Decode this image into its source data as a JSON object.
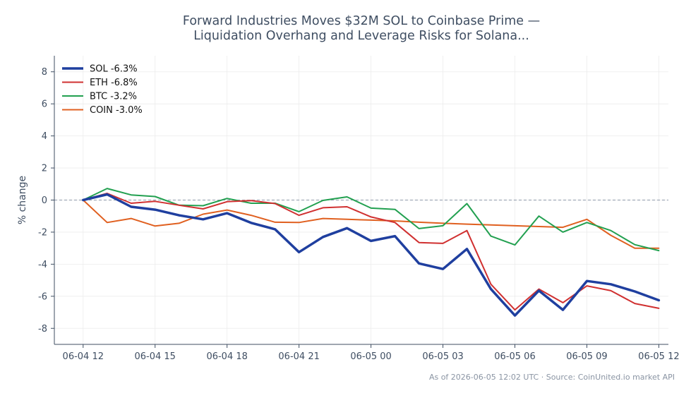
{
  "chart_data": {
    "type": "line",
    "title_lines": [
      "Forward Industries Moves $32M SOL to Coinbase Prime —",
      "Liquidation Overhang and Leverage Risks for Solana..."
    ],
    "xlabel": "",
    "ylabel": "% change",
    "ylim": [
      -9,
      9
    ],
    "yticks": [
      -8,
      -6,
      -4,
      -2,
      0,
      2,
      4,
      6,
      8
    ],
    "xlim": [
      -1.2,
      24.4
    ],
    "xticks": [
      {
        "x": 0,
        "label": "06-04 12"
      },
      {
        "x": 3,
        "label": "06-04 15"
      },
      {
        "x": 6,
        "label": "06-04 18"
      },
      {
        "x": 9,
        "label": "06-04 21"
      },
      {
        "x": 12,
        "label": "06-05 00"
      },
      {
        "x": 15,
        "label": "06-05 03"
      },
      {
        "x": 18,
        "label": "06-05 06"
      },
      {
        "x": 21,
        "label": "06-05 09"
      },
      {
        "x": 24,
        "label": "06-05 12"
      }
    ],
    "grid": true,
    "zero_line": true,
    "legend_position": "top-left",
    "x": [
      0,
      1,
      2,
      3,
      4,
      5,
      6,
      7,
      8,
      9,
      10,
      11,
      12,
      13,
      14,
      15,
      16,
      17,
      18,
      19,
      20,
      21,
      22,
      23,
      24
    ],
    "series": [
      {
        "name": "SOL -6.3%",
        "color": "#1f3f9f",
        "width": 3.5,
        "values": [
          0,
          0.35,
          -0.42,
          -0.6,
          -0.95,
          -1.2,
          -0.82,
          -1.42,
          -1.82,
          -3.25,
          -2.3,
          -1.75,
          -2.55,
          -2.25,
          -3.95,
          -4.3,
          -3.05,
          -5.55,
          -7.2,
          -5.65,
          -6.85,
          -5.05,
          -5.25,
          -5.7,
          -6.25
        ]
      },
      {
        "name": "ETH -6.8%",
        "color": "#d03030",
        "width": 2,
        "values": [
          0,
          0.42,
          -0.2,
          -0.08,
          -0.32,
          -0.55,
          -0.1,
          -0.03,
          -0.22,
          -0.95,
          -0.48,
          -0.42,
          -1.05,
          -1.4,
          -2.65,
          -2.7,
          -1.9,
          -5.25,
          -6.85,
          -5.55,
          -6.4,
          -5.35,
          -5.65,
          -6.45,
          -6.75
        ]
      },
      {
        "name": "BTC -3.2%",
        "color": "#22a050",
        "width": 2,
        "values": [
          0,
          0.72,
          0.32,
          0.22,
          -0.32,
          -0.35,
          0.1,
          -0.2,
          -0.2,
          -0.72,
          -0.02,
          0.2,
          -0.5,
          -0.58,
          -1.78,
          -1.6,
          -0.22,
          -2.25,
          -2.8,
          -1.0,
          -2.0,
          -1.4,
          -1.9,
          -2.78,
          -3.15
        ]
      },
      {
        "name": "COIN -3.0%",
        "color": "#e06020",
        "width": 2,
        "values": [
          0,
          -1.4,
          -1.15,
          -1.62,
          -1.45,
          -0.88,
          -0.62,
          -0.95,
          -1.38,
          -1.4,
          -1.15,
          -1.2,
          -1.25,
          -1.3,
          -1.38,
          -1.45,
          -1.5,
          -1.55,
          -1.6,
          -1.65,
          -1.7,
          -1.2,
          -2.2,
          -3.0,
          -3.0
        ]
      }
    ]
  },
  "footer": {
    "note": "As of 2026-06-05 12:02 UTC · Source: CoinUnited.io market API"
  }
}
